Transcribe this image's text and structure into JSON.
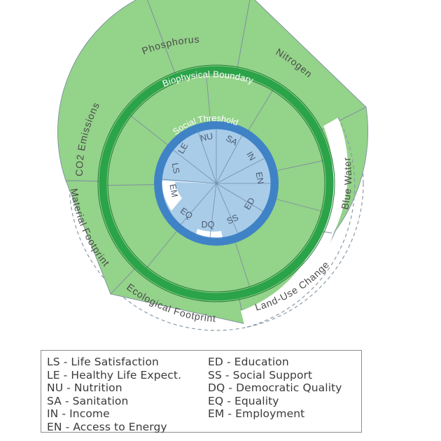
{
  "diagram": {
    "outer_ring_labels": {
      "phosphorus": "Phosphorus",
      "nitrogen": "Nitrogen",
      "co2": "CO2 Emissions",
      "blue_water": "Blue Water",
      "material": "Material Footprint",
      "land_use": "Land-Use Change",
      "ecological": "Ecological Footprint"
    },
    "boundary_label": "Biophysical Boundary",
    "threshold_label": "Social Threshold",
    "inner_labels": [
      "LE",
      "NU",
      "SA",
      "IN",
      "EN",
      "ED",
      "SS",
      "DQ",
      "EQ",
      "EM",
      "LS"
    ],
    "colors": {
      "light_green": "#94d38a",
      "dark_green": "#2ba349",
      "blue": "#3f83c6",
      "light_blue": "#a9cce8",
      "white": "#ffffff"
    }
  },
  "legend": {
    "left": [
      "LS - Life Satisfaction",
      "LE - Healthy Life Expect.",
      "NU - Nutrition",
      "SA - Sanitation",
      "IN - Income",
      "EN - Access to Energy"
    ],
    "right": [
      "ED - Education",
      "SS - Social Support",
      "DQ - Democratic Quality",
      "EQ - Equality",
      "EM - Employment"
    ]
  }
}
